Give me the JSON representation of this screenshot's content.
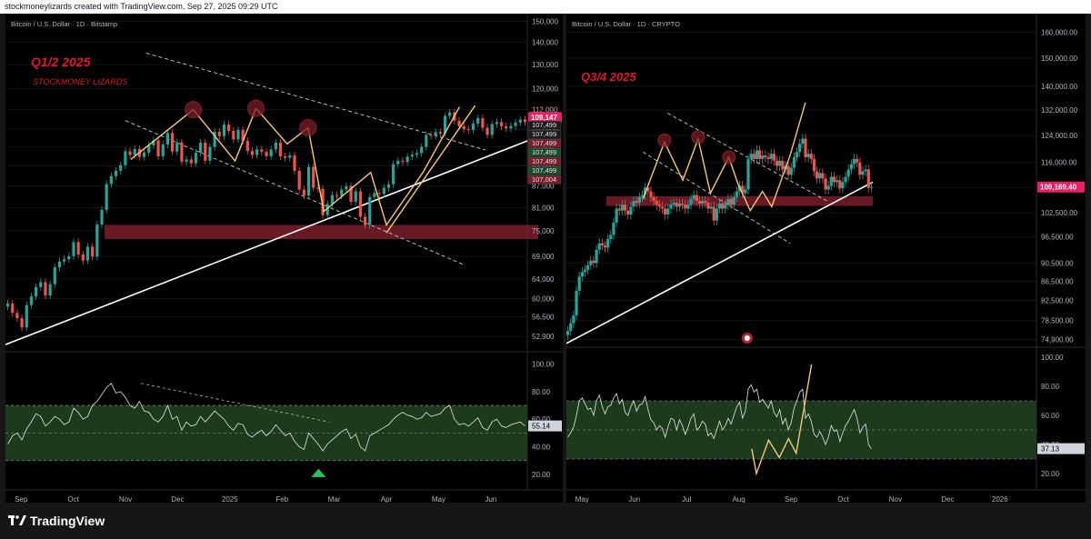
{
  "header": {
    "text": "stockmoneylizards created with TradingView.com, Sep 27, 2025 09:29 UTC"
  },
  "footer": {
    "brand": "TradingView"
  },
  "colors": {
    "bull": "#26a69a",
    "bear": "#ef5350",
    "zone": "#7a1d2a",
    "rsi_band": "#1c3a1c",
    "pattern": "#f7c873",
    "label_red": "#e0162b"
  },
  "chart_data": [
    {
      "type": "candlestick",
      "title": "Bitcoin / U.S. Dollar · 1D · Bitstamp",
      "annotations": [
        "Q1/2 2025",
        "STOCKMONEY LIZARDS"
      ],
      "x_ticks": [
        "Sep",
        "Oct",
        "Nov",
        "Dec",
        "2025",
        "Feb",
        "Mar",
        "Apr",
        "May",
        "Jun"
      ],
      "y_ticks": [
        52900,
        56500,
        60000,
        64000,
        69000,
        75000,
        81000,
        87000,
        93000,
        99000,
        105000,
        112000,
        120000,
        130000,
        140000,
        150000
      ],
      "ylim": [
        50000,
        152000
      ],
      "y_scale": "log",
      "last_price": 109147,
      "price_labels": [
        107499,
        107499,
        107499,
        107499,
        107499,
        107499,
        107004
      ],
      "close_series": [
        59000,
        57200,
        56200,
        54500,
        58700,
        60400,
        62300,
        63300,
        60600,
        62900,
        66500,
        67800,
        68300,
        69000,
        72300,
        69400,
        68000,
        71200,
        68900,
        76600,
        80400,
        87600,
        89900,
        91500,
        93200,
        97600,
        96400,
        98300,
        95800,
        97200,
        99500,
        101200,
        96000,
        99800,
        103700,
        97500,
        100500,
        94300,
        95000,
        93800,
        97100,
        100400,
        94600,
        99000,
        104100,
        102600,
        106600,
        104400,
        101500,
        104700,
        101000,
        97700,
        96400,
        98200,
        97400,
        96000,
        98200,
        100400,
        96000,
        95500,
        96300,
        91500,
        86000,
        84300,
        92700,
        86500,
        86200,
        79000,
        82000,
        84400,
        84200,
        86000,
        87000,
        82600,
        85500,
        78600,
        76500,
        83900,
        85000,
        84800,
        86500,
        87500,
        93500,
        94600,
        94200,
        95900,
        96500,
        97000,
        99000,
        103000,
        102700,
        104000,
        103500,
        109700,
        111000,
        108000,
        106000,
        105000,
        104700,
        107000,
        108900,
        105500,
        103000,
        106800,
        107500,
        106000,
        105300,
        106100,
        107300,
        108400,
        107499
      ],
      "rsi_series": [
        42,
        48,
        50,
        45,
        53,
        58,
        64,
        62,
        55,
        58,
        62,
        60,
        56,
        58,
        68,
        65,
        60,
        62,
        70,
        73,
        78,
        83,
        86,
        79,
        80,
        76,
        70,
        68,
        73,
        66,
        65,
        60,
        58,
        62,
        70,
        60,
        62,
        52,
        58,
        55,
        56,
        62,
        58,
        62,
        66,
        63,
        60,
        55,
        52,
        57,
        56,
        49,
        47,
        50,
        52,
        48,
        51,
        56,
        52,
        48,
        50,
        44,
        40,
        38,
        50,
        46,
        42,
        37,
        42,
        45,
        48,
        51,
        53,
        46,
        49,
        40,
        37,
        48,
        50,
        52,
        54,
        56,
        60,
        63,
        65,
        63,
        62,
        60,
        61,
        65,
        62,
        63,
        64,
        68,
        70,
        60,
        56,
        57,
        55,
        58,
        61,
        54,
        52,
        58,
        60,
        55,
        54,
        56,
        57,
        58,
        55.14
      ],
      "rsi_ylim": [
        10,
        105
      ],
      "rsi_ticks": [
        20,
        40,
        60,
        80,
        100
      ],
      "rsi_last": 55.14
    },
    {
      "type": "candlestick",
      "title": "Bitcoin / U.S. Dollar · 1D · CRYPTO",
      "annotations": [
        "Q3/4 2025"
      ],
      "x_ticks": [
        "May",
        "Jun",
        "Jul",
        "Aug",
        "Sep",
        "Oct",
        "Nov",
        "Dec",
        "2026"
      ],
      "y_ticks": [
        74900,
        78500,
        82500,
        86500,
        90500,
        96500,
        102500,
        109000,
        116000,
        124000,
        132000,
        140000,
        150000,
        160000
      ],
      "ylim": [
        74000,
        166000
      ],
      "y_scale": "log",
      "last_price": 109169.4,
      "close_series": [
        76500,
        78000,
        79500,
        84500,
        87500,
        88500,
        89000,
        90000,
        91000,
        90500,
        93500,
        95000,
        94500,
        94000,
        96000,
        97000,
        100000,
        103500,
        103000,
        104500,
        103000,
        102000,
        104000,
        105500,
        105000,
        106500,
        107000,
        109000,
        108000,
        106500,
        105500,
        104500,
        104000,
        103500,
        102000,
        103500,
        104500,
        105000,
        104000,
        104800,
        104500,
        103500,
        104500,
        106000,
        107000,
        105500,
        104800,
        105500,
        105000,
        103500,
        104000,
        100500,
        103500,
        104800,
        103500,
        104500,
        106000,
        104500,
        106500,
        108000,
        109500,
        107500,
        108500,
        117000,
        118500,
        117000,
        119500,
        117000,
        118000,
        117500,
        117000,
        118500,
        116500,
        115000,
        116500,
        114000,
        115000,
        112500,
        114500,
        117500,
        119000,
        121500,
        123000,
        117500,
        118500,
        117000,
        113500,
        111500,
        113000,
        111500,
        108500,
        109500,
        112000,
        110500,
        111000,
        108800,
        110500,
        112000,
        114000,
        115500,
        117000,
        116000,
        112500,
        113500,
        114000,
        109000,
        109169
      ],
      "rsi_series": [
        45,
        48,
        52,
        60,
        70,
        72,
        68,
        64,
        65,
        60,
        70,
        74,
        66,
        61,
        66,
        67,
        72,
        75,
        68,
        71,
        62,
        60,
        66,
        70,
        63,
        67,
        68,
        73,
        64,
        57,
        55,
        50,
        53,
        51,
        45,
        52,
        58,
        57,
        50,
        57,
        53,
        47,
        52,
        58,
        61,
        50,
        52,
        56,
        54,
        46,
        48,
        44,
        50,
        56,
        50,
        53,
        58,
        54,
        60,
        66,
        69,
        58,
        63,
        78,
        81,
        76,
        78,
        69,
        71,
        68,
        65,
        70,
        62,
        59,
        64,
        54,
        58,
        50,
        55,
        65,
        70,
        76,
        78,
        58,
        61,
        56,
        47,
        45,
        49,
        45,
        40,
        45,
        53,
        49,
        50,
        42,
        48,
        53,
        56,
        60,
        64,
        58,
        48,
        52,
        54,
        40,
        37.13
      ],
      "rsi_ylim": [
        10,
        105
      ],
      "rsi_ticks": [
        20,
        40,
        60,
        80,
        100
      ],
      "rsi_last": 37.13
    }
  ]
}
